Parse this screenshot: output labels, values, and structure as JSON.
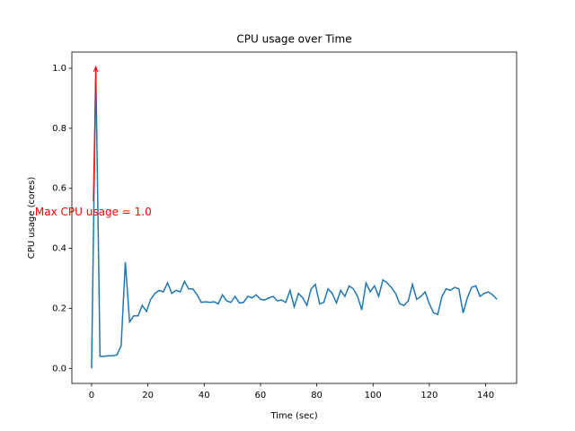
{
  "chart_data": {
    "type": "line",
    "title": "CPU usage over Time",
    "xlabel": "Time (sec)",
    "ylabel": "CPU usage (cores)",
    "x": [
      0,
      1.5,
      3,
      4.5,
      6,
      7.5,
      9,
      10.5,
      12,
      13.5,
      15,
      16.5,
      18,
      19.5,
      21,
      22.5,
      24,
      25.5,
      27,
      28.5,
      30,
      31.5,
      33,
      34.5,
      36,
      37.5,
      39,
      40.5,
      42,
      43.5,
      45,
      46.5,
      48,
      49.5,
      51,
      52.5,
      54,
      55.5,
      57,
      58.5,
      60,
      61.5,
      63,
      64.5,
      66,
      67.5,
      69,
      70.5,
      72,
      73.5,
      75,
      76.5,
      78,
      79.5,
      81,
      82.5,
      84,
      85.5,
      87,
      88.5,
      90,
      91.5,
      93,
      94.5,
      96,
      97.5,
      99,
      100.5,
      102,
      103.5,
      105,
      106.5,
      108,
      109.5,
      111,
      112.5,
      114,
      115.5,
      117,
      118.5,
      120,
      121.5,
      123,
      124.5,
      126,
      127.5,
      129,
      130.5,
      132,
      133.5,
      135,
      136.5,
      138,
      139.5,
      141,
      142.5,
      144
    ],
    "series": [
      {
        "name": "CPU usage",
        "color": "#1f77b4",
        "values": [
          0,
          1.005,
          0.04,
          0.04,
          0.042,
          0.042,
          0.045,
          0.075,
          0.355,
          0.155,
          0.175,
          0.175,
          0.21,
          0.19,
          0.23,
          0.25,
          0.26,
          0.255,
          0.285,
          0.25,
          0.26,
          0.255,
          0.29,
          0.265,
          0.265,
          0.245,
          0.22,
          0.222,
          0.22,
          0.222,
          0.215,
          0.245,
          0.225,
          0.22,
          0.24,
          0.218,
          0.22,
          0.24,
          0.235,
          0.245,
          0.23,
          0.228,
          0.235,
          0.24,
          0.225,
          0.228,
          0.22,
          0.26,
          0.205,
          0.25,
          0.235,
          0.21,
          0.265,
          0.28,
          0.215,
          0.22,
          0.265,
          0.25,
          0.218,
          0.26,
          0.24,
          0.275,
          0.265,
          0.24,
          0.195,
          0.285,
          0.255,
          0.275,
          0.24,
          0.295,
          0.285,
          0.27,
          0.25,
          0.215,
          0.21,
          0.225,
          0.28,
          0.23,
          0.24,
          0.255,
          0.215,
          0.185,
          0.18,
          0.24,
          0.265,
          0.26,
          0.27,
          0.265,
          0.185,
          0.235,
          0.27,
          0.275,
          0.24,
          0.25,
          0.255,
          0.245,
          0.23
        ]
      }
    ],
    "xlim": [
      -7,
      151
    ],
    "ylim": [
      -0.05,
      1.054
    ],
    "xticks": [
      0,
      20,
      40,
      60,
      80,
      100,
      120,
      140
    ],
    "yticks": [
      {
        "value": 0,
        "label": "0.0"
      },
      {
        "value": 0.2,
        "label": "0.2"
      },
      {
        "value": 0.4,
        "label": "0.4"
      },
      {
        "value": 0.6,
        "label": "0.6"
      },
      {
        "value": 0.8,
        "label": "0.8"
      },
      {
        "value": 1,
        "label": "1.0"
      }
    ],
    "annotation": {
      "text": "Max CPU usage = 1.0",
      "xy": [
        1.5,
        1.005
      ],
      "xytext": [
        0.6,
        0.52
      ],
      "color": "#ff0000"
    }
  }
}
